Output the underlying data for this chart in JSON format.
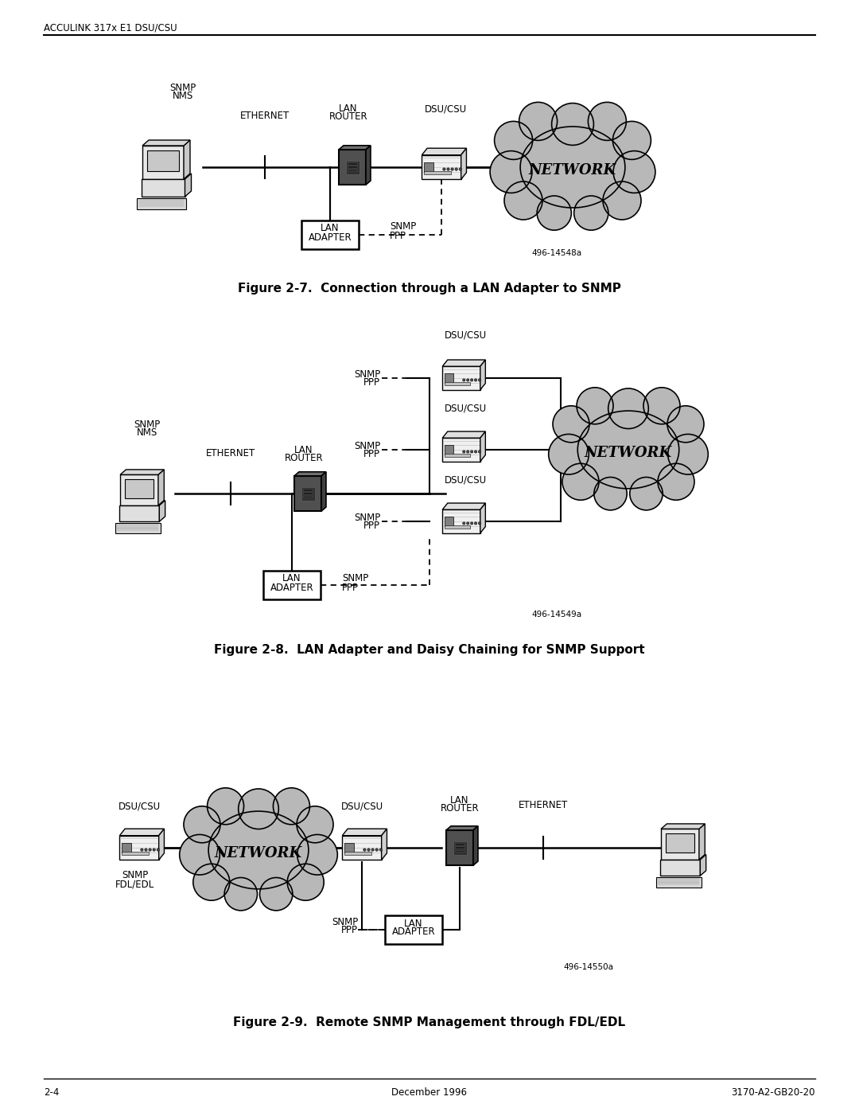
{
  "page_title": "ACCULINK 317x E1 DSU/CSU",
  "footer_left": "2-4",
  "footer_center": "December 1996",
  "footer_right": "3170-A2-GB20-20",
  "fig1_caption": "Figure 2-7.  Connection through a LAN Adapter to SNMP",
  "fig2_caption": "Figure 2-8.  LAN Adapter and Daisy Chaining for SNMP Support",
  "fig3_caption": "Figure 2-9.  Remote SNMP Management through FDL/EDL",
  "bg_color": "#ffffff",
  "cloud_color": "#b8b8b8",
  "label_fontsize": 8.5,
  "caption_fontsize": 11,
  "header_fontsize": 8.5,
  "fig1_ref": "496-14548a",
  "fig2_ref": "496-14549a",
  "fig3_ref": "496-14550a"
}
